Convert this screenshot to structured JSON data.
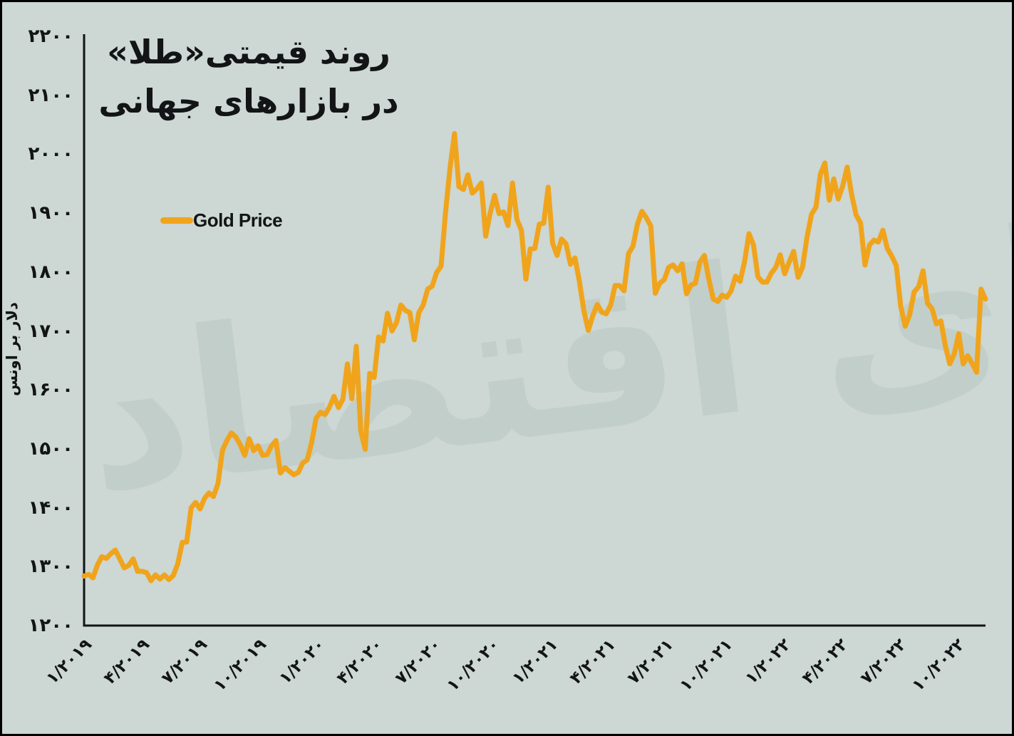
{
  "frame": {
    "background_color": "#cdd7d3",
    "border_color": "#000000"
  },
  "title": {
    "line1": "روند قیمتی«طلا»",
    "line2": "در بازارهای جهانی"
  },
  "legend": {
    "label": "Gold Price",
    "swatch_color": "#f0a41c"
  },
  "watermark": {
    "text": "فردای اقتصاد",
    "color": "#c2cec9"
  },
  "chart_data": {
    "type": "line",
    "title": "روند قیمتی«طلا» در بازارهای جهانی",
    "xlabel": "",
    "ylabel": "دلار بر اونس",
    "ylim": [
      1200,
      2200
    ],
    "grid": false,
    "legend_position": "upper-left",
    "line_color": "#f0a41c",
    "axis_color": "#121416",
    "y_ticks": [
      {
        "value": 2200,
        "label": "۲۲۰۰"
      },
      {
        "value": 2100,
        "label": "۲۱۰۰"
      },
      {
        "value": 2000,
        "label": "۲۰۰۰"
      },
      {
        "value": 1900,
        "label": "۱۹۰۰"
      },
      {
        "value": 1800,
        "label": "۱۸۰۰"
      },
      {
        "value": 1700,
        "label": "۱۷۰۰"
      },
      {
        "value": 1600,
        "label": "۱۶۰۰"
      },
      {
        "value": 1500,
        "label": "۱۵۰۰"
      },
      {
        "value": 1400,
        "label": "۱۴۰۰"
      },
      {
        "value": 1300,
        "label": "۱۳۰۰"
      },
      {
        "value": 1200,
        "label": "۱۲۰۰"
      }
    ],
    "x_ticks": [
      {
        "label": "۱/۲۰۱۹",
        "day": 0
      },
      {
        "label": "۴/۲۰۱۹",
        "day": 90
      },
      {
        "label": "۷/۲۰۱۹",
        "day": 181
      },
      {
        "label": "۱۰/۲۰۱۹",
        "day": 273
      },
      {
        "label": "۱/۲۰۲۰",
        "day": 365
      },
      {
        "label": "۴/۲۰۲۰",
        "day": 456
      },
      {
        "label": "۷/۲۰۲۰",
        "day": 547
      },
      {
        "label": "۱۰/۲۰۲۰",
        "day": 639
      },
      {
        "label": "۱/۲۰۲۱",
        "day": 731
      },
      {
        "label": "۴/۲۰۲۱",
        "day": 821
      },
      {
        "label": "۷/۲۰۲۱",
        "day": 912
      },
      {
        "label": "۱۰/۲۰۲۱",
        "day": 1004
      },
      {
        "label": "۱/۲۰۲۲",
        "day": 1096
      },
      {
        "label": "۴/۲۰۲۲",
        "day": 1186
      },
      {
        "label": "۷/۲۰۲۲",
        "day": 1277
      },
      {
        "label": "۱۰/۲۰۲۲",
        "day": 1369
      }
    ],
    "x_start_day": 3,
    "x_span_days": 1414,
    "series": [
      {
        "name": "Gold Price",
        "unit": "USD per ounce",
        "frequency": "weekly",
        "start": "1/2019",
        "end": "11/2022",
        "values": [
          1284,
          1287,
          1281,
          1303,
          1317,
          1314,
          1322,
          1328,
          1313,
          1298,
          1302,
          1313,
          1292,
          1292,
          1290,
          1276,
          1286,
          1279,
          1286,
          1278,
          1285,
          1305,
          1341,
          1342,
          1400,
          1409,
          1398,
          1416,
          1425,
          1419,
          1441,
          1497,
          1514,
          1527,
          1520,
          1507,
          1489,
          1517,
          1497,
          1505,
          1489,
          1490,
          1505,
          1514,
          1459,
          1468,
          1462,
          1456,
          1460,
          1476,
          1481,
          1511,
          1552,
          1562,
          1558,
          1571,
          1589,
          1570,
          1584,
          1644,
          1585,
          1674,
          1530,
          1499,
          1628,
          1621,
          1690,
          1683,
          1730,
          1700,
          1714,
          1744,
          1735,
          1731,
          1685,
          1731,
          1744,
          1771,
          1776,
          1799,
          1810,
          1902,
          1976,
          2035,
          1945,
          1940,
          1965,
          1934,
          1941,
          1951,
          1861,
          1900,
          1930,
          1899,
          1902,
          1879,
          1951,
          1889,
          1871,
          1788,
          1839,
          1840,
          1881,
          1883,
          1944,
          1849,
          1828,
          1856,
          1848,
          1813,
          1824,
          1784,
          1734,
          1701,
          1726,
          1745,
          1732,
          1729,
          1744,
          1777,
          1777,
          1768,
          1831,
          1844,
          1881,
          1903,
          1892,
          1878,
          1764,
          1781,
          1787,
          1808,
          1812,
          1802,
          1814,
          1763,
          1778,
          1781,
          1817,
          1828,
          1788,
          1754,
          1750,
          1761,
          1757,
          1768,
          1793,
          1784,
          1817,
          1865,
          1846,
          1792,
          1783,
          1783,
          1798,
          1808,
          1829,
          1797,
          1817,
          1835,
          1791,
          1808,
          1859,
          1898,
          1910,
          1966,
          1985,
          1922,
          1958,
          1924,
          1946,
          1978,
          1932,
          1897,
          1883,
          1812,
          1846,
          1854,
          1851,
          1871,
          1840,
          1827,
          1811,
          1742,
          1708,
          1727,
          1766,
          1775,
          1802,
          1747,
          1738,
          1712,
          1717,
          1675,
          1644,
          1661,
          1695,
          1644,
          1658,
          1645,
          1630,
          1771,
          1754
        ]
      }
    ]
  }
}
